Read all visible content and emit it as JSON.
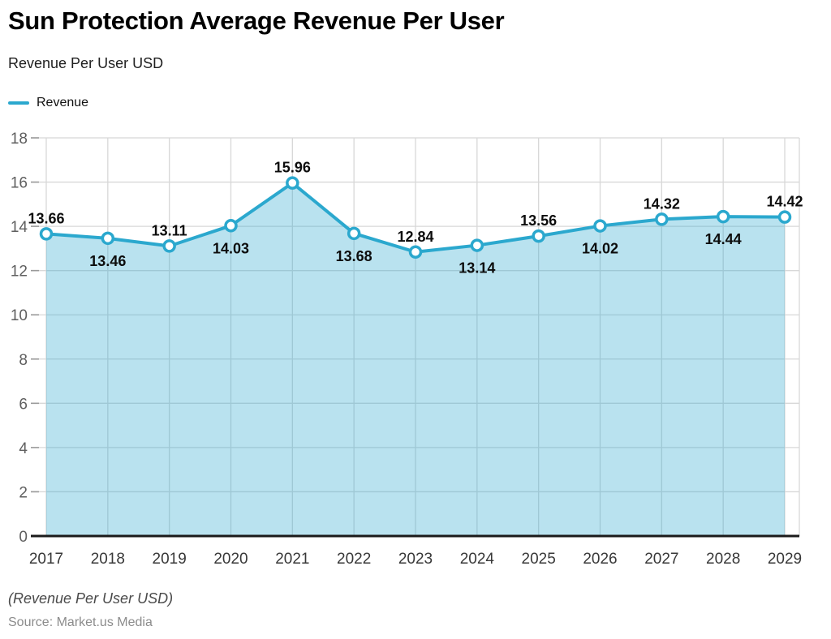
{
  "chart_data": {
    "type": "area",
    "title": "Sun Protection Average Revenue Per User",
    "subtitle": "Revenue Per User USD",
    "categories": [
      2017,
      2018,
      2019,
      2020,
      2021,
      2022,
      2023,
      2024,
      2025,
      2026,
      2027,
      2028,
      2029
    ],
    "series": [
      {
        "name": "Revenue",
        "values": [
          13.66,
          13.46,
          13.11,
          14.03,
          15.96,
          13.68,
          12.84,
          13.14,
          13.56,
          14.02,
          14.32,
          14.44,
          14.42
        ]
      }
    ],
    "value_labels": [
      "13.66",
      "13.46",
      "13.11",
      "14.03",
      "15.96",
      "13.68",
      "12.84",
      "13.14",
      "13.56",
      "14.02",
      "14.32",
      "14.44",
      "14.42"
    ],
    "label_positions": [
      "above",
      "below",
      "above",
      "below",
      "above",
      "below",
      "above",
      "below",
      "above",
      "below",
      "above",
      "below",
      "above"
    ],
    "xlabel": "",
    "ylabel": "",
    "ylim": [
      0,
      18
    ],
    "yticks": [
      0,
      2,
      4,
      6,
      8,
      10,
      12,
      14,
      16,
      18
    ],
    "grid": true,
    "legend_position": "top-left",
    "colors": {
      "line": "#2BA8CE",
      "area_fill": "rgba(43,168,206,0.33)",
      "marker_fill": "#ffffff",
      "grid": "#d8d8d8",
      "tick": "#9a9a9a",
      "axis": "#1a1a1a",
      "y_label": "#5f5f5f",
      "x_label": "#383838",
      "value_label": "#0d0d0d"
    }
  },
  "footer": {
    "note": "(Revenue Per User USD)",
    "source": "Source: Market.us Media"
  }
}
